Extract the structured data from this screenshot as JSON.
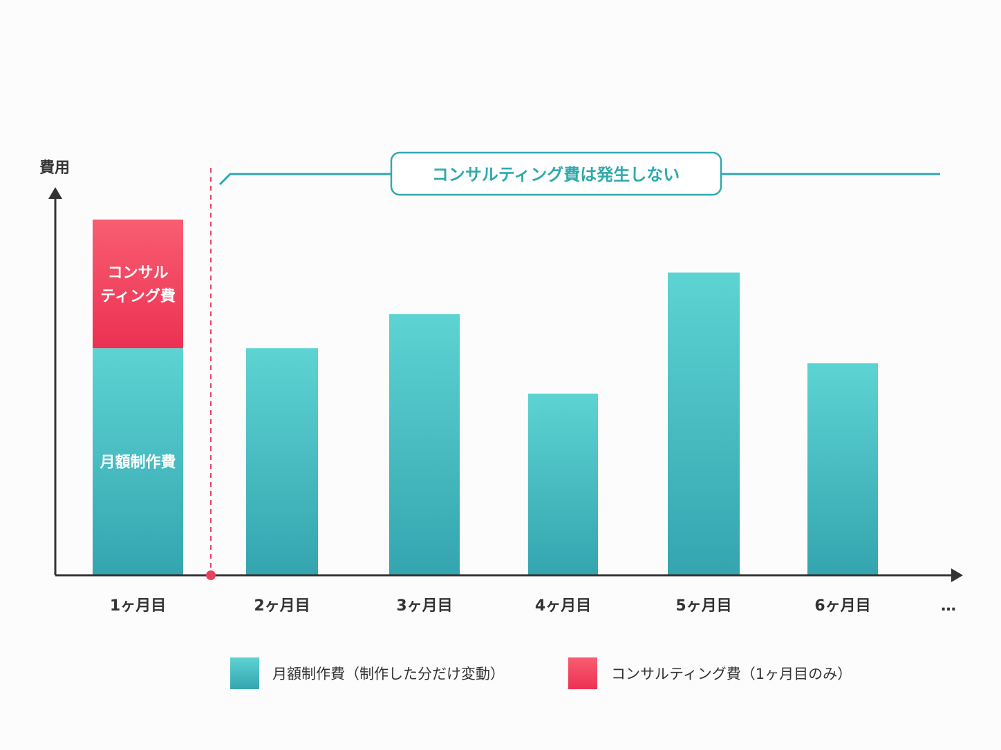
{
  "chart_data": {
    "type": "bar",
    "stacked": true,
    "ylabel": "費用",
    "ylim": [
      0,
      100
    ],
    "grid": false,
    "categories": [
      "1ヶ月目",
      "2ヶ月目",
      "3ヶ月目",
      "4ヶ月目",
      "5ヶ月目",
      "6ヶ月目"
    ],
    "x_continuation": "…",
    "series": [
      {
        "name": "月額制作費（制作した分だけ変動）",
        "bar_label": "月額制作費",
        "values": [
          60,
          60,
          69,
          48,
          80,
          56
        ],
        "color_top": "#5dd3d3",
        "color_bottom": "#34a5af"
      },
      {
        "name": "コンサルティング費（1ヶ月目のみ）",
        "bar_label": "コンサル\nティング費",
        "values": [
          34,
          0,
          0,
          0,
          0,
          0
        ],
        "color_top": "#f85d72",
        "color_bottom": "#ec3152"
      }
    ],
    "annotation": "コンサルティング費は発生しない",
    "legend_placement": "bottom",
    "accent_color": "#2fa9ad",
    "divider_color": "#e8435e"
  }
}
